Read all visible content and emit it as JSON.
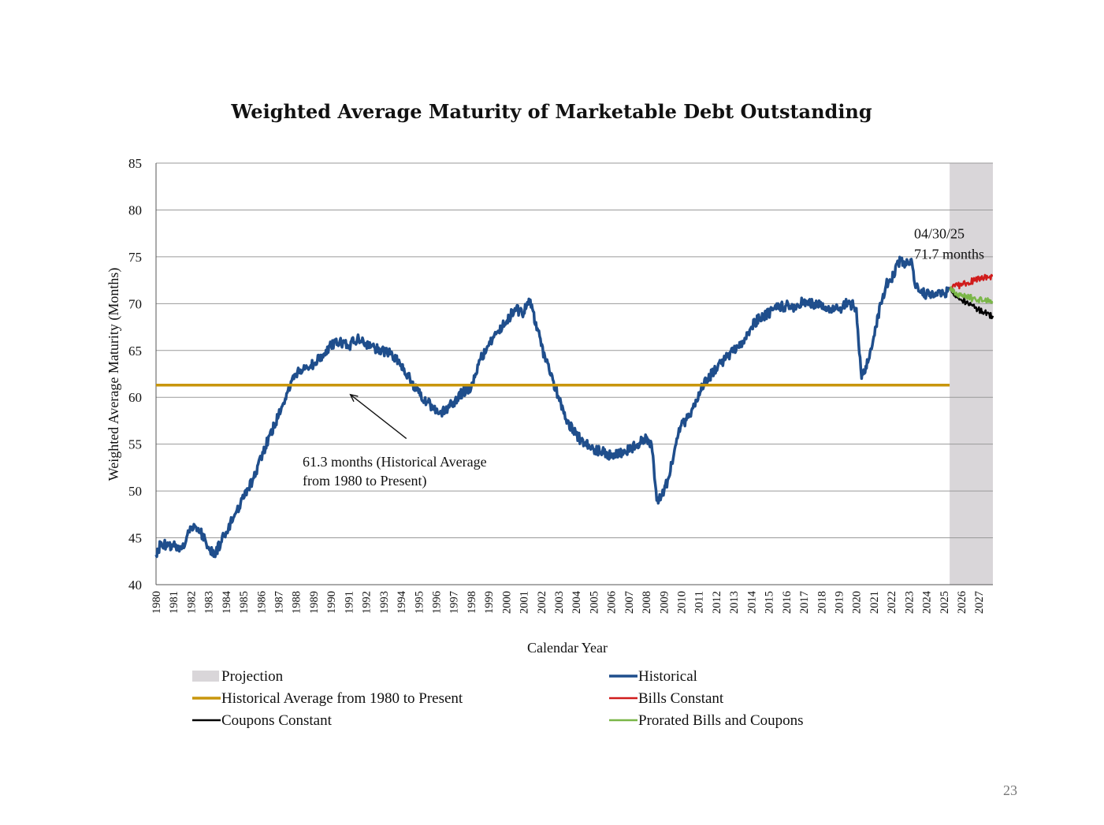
{
  "page_number": "23",
  "chart_data": {
    "type": "line",
    "title": "Weighted Average Maturity of Marketable Debt Outstanding",
    "xlabel": "Calendar Year",
    "ylabel": "Weighted Average Maturity (Months)",
    "ylim": [
      40,
      85
    ],
    "yticks": [
      40,
      45,
      50,
      55,
      60,
      65,
      70,
      75,
      80,
      85
    ],
    "xlim": [
      1980,
      2027.8
    ],
    "xticks": [
      "1980",
      "1981",
      "1982",
      "1983",
      "1984",
      "1985",
      "1986",
      "1987",
      "1988",
      "1989",
      "1990",
      "1991",
      "1992",
      "1993",
      "1994",
      "1995",
      "1996",
      "1997",
      "1998",
      "1999",
      "2000",
      "2001",
      "2002",
      "2003",
      "2004",
      "2005",
      "2006",
      "2007",
      "2008",
      "2009",
      "2010",
      "2011",
      "2012",
      "2013",
      "2014",
      "2015",
      "2016",
      "2017",
      "2018",
      "2019",
      "2020",
      "2021",
      "2022",
      "2023",
      "2024",
      "2025",
      "2026",
      "2027"
    ],
    "grid": "horizontal",
    "projection_start": 2025.33,
    "historical_average": 61.3,
    "series": [
      {
        "name": "Historical",
        "color": "#1f4e8c",
        "points": [
          [
            1980,
            43.2
          ],
          [
            1980.3,
            44.5
          ],
          [
            1980.7,
            44.2
          ],
          [
            1981,
            44.3
          ],
          [
            1981.5,
            44.0
          ],
          [
            1982,
            46.0
          ],
          [
            1982.5,
            45.7
          ],
          [
            1983,
            44.0
          ],
          [
            1983.3,
            43.0
          ],
          [
            1983.7,
            44.5
          ],
          [
            1984,
            45.6
          ],
          [
            1984.5,
            47.5
          ],
          [
            1985,
            49.2
          ],
          [
            1985.5,
            51.0
          ],
          [
            1986,
            53.5
          ],
          [
            1986.5,
            56.0
          ],
          [
            1987,
            58.0
          ],
          [
            1987.5,
            60.5
          ],
          [
            1988,
            62.5
          ],
          [
            1988.5,
            63.0
          ],
          [
            1989,
            63.5
          ],
          [
            1989.5,
            64.5
          ],
          [
            1990,
            65.5
          ],
          [
            1990.5,
            66.0
          ],
          [
            1991,
            65.5
          ],
          [
            1991.5,
            66.3
          ],
          [
            1992,
            65.8
          ],
          [
            1992.5,
            65.3
          ],
          [
            1993,
            65.0
          ],
          [
            1993.5,
            64.5
          ],
          [
            1994,
            63.5
          ],
          [
            1994.5,
            62.0
          ],
          [
            1995,
            60.5
          ],
          [
            1995.5,
            59.5
          ],
          [
            1996,
            58.5
          ],
          [
            1996.5,
            58.5
          ],
          [
            1997,
            59.5
          ],
          [
            1997.5,
            60.5
          ],
          [
            1998,
            61.0
          ],
          [
            1998.5,
            64.0
          ],
          [
            1999,
            65.5
          ],
          [
            1999.5,
            67.0
          ],
          [
            2000,
            68.0
          ],
          [
            2000.5,
            69.5
          ],
          [
            2001,
            69.0
          ],
          [
            2001.3,
            70.5
          ],
          [
            2001.7,
            68.0
          ],
          [
            2002,
            65.5
          ],
          [
            2002.5,
            62.5
          ],
          [
            2003,
            60.0
          ],
          [
            2003.5,
            57.5
          ],
          [
            2004,
            56.0
          ],
          [
            2004.5,
            55.0
          ],
          [
            2005,
            54.5
          ],
          [
            2005.5,
            54.2
          ],
          [
            2006,
            53.8
          ],
          [
            2006.5,
            54.0
          ],
          [
            2007,
            54.3
          ],
          [
            2007.5,
            55.0
          ],
          [
            2008,
            55.8
          ],
          [
            2008.3,
            55.0
          ],
          [
            2008.6,
            49.0
          ],
          [
            2008.9,
            49.5
          ],
          [
            2009.3,
            51.5
          ],
          [
            2009.7,
            55.0
          ],
          [
            2010,
            57.0
          ],
          [
            2010.5,
            58.0
          ],
          [
            2011,
            60.5
          ],
          [
            2011.5,
            62.0
          ],
          [
            2012,
            63.0
          ],
          [
            2012.5,
            64.0
          ],
          [
            2013,
            65.0
          ],
          [
            2013.5,
            66.0
          ],
          [
            2014,
            67.5
          ],
          [
            2014.5,
            68.5
          ],
          [
            2015,
            69.0
          ],
          [
            2015.5,
            69.5
          ],
          [
            2016,
            69.8
          ],
          [
            2016.5,
            69.5
          ],
          [
            2017,
            70.3
          ],
          [
            2017.5,
            70.0
          ],
          [
            2018,
            69.8
          ],
          [
            2018.5,
            69.5
          ],
          [
            2019,
            69.3
          ],
          [
            2019.5,
            70.2
          ],
          [
            2020,
            69.5
          ],
          [
            2020.3,
            62.0
          ],
          [
            2020.7,
            64.0
          ],
          [
            2021,
            66.5
          ],
          [
            2021.4,
            70.0
          ],
          [
            2021.7,
            72.0
          ],
          [
            2022,
            72.5
          ],
          [
            2022.4,
            74.5
          ],
          [
            2022.8,
            74.3
          ],
          [
            2023.1,
            74.7
          ],
          [
            2023.3,
            72.5
          ],
          [
            2023.6,
            71.3
          ],
          [
            2024,
            71.0
          ],
          [
            2024.5,
            70.8
          ],
          [
            2025,
            71.0
          ],
          [
            2025.33,
            71.7
          ]
        ]
      },
      {
        "name": "Bills Constant",
        "color": "#d01c1c",
        "points": [
          [
            2025.33,
            71.7
          ],
          [
            2025.8,
            71.9
          ],
          [
            2026.3,
            72.2
          ],
          [
            2026.8,
            72.5
          ],
          [
            2027.3,
            72.7
          ],
          [
            2027.8,
            73.0
          ]
        ]
      },
      {
        "name": "Coupons Constant",
        "color": "#000000",
        "points": [
          [
            2025.33,
            71.5
          ],
          [
            2025.8,
            70.6
          ],
          [
            2026.3,
            70.2
          ],
          [
            2026.8,
            69.6
          ],
          [
            2027.3,
            69.0
          ],
          [
            2027.8,
            68.7
          ]
        ]
      },
      {
        "name": "Prorated Bills and Coupons",
        "color": "#7ab648",
        "points": [
          [
            2025.33,
            71.6
          ],
          [
            2025.8,
            71.0
          ],
          [
            2026.3,
            70.7
          ],
          [
            2026.8,
            70.5
          ],
          [
            2027.3,
            70.3
          ],
          [
            2027.8,
            70.2
          ]
        ]
      },
      {
        "name": "Historical Average from 1980 to Present",
        "color": "#c8960c",
        "points": [
          [
            1980,
            61.3
          ],
          [
            2025.33,
            61.3
          ]
        ]
      }
    ],
    "annotations": [
      {
        "lines": [
          "04/30/25",
          "71.7 months"
        ],
        "x": 2023.3,
        "y": 75.3
      },
      {
        "lines": [
          "61.3 months (Historical Average",
          "from 1980 to Present)"
        ],
        "arrow_from": [
          1994.3,
          55.6
        ],
        "arrow_to": [
          1991.1,
          61.3
        ]
      }
    ],
    "legend": {
      "placement": "bottom",
      "items": [
        {
          "label": "Projection",
          "color": "#d9d6d9",
          "kind": "box"
        },
        {
          "label": "Historical",
          "color": "#1f4e8c",
          "kind": "line"
        },
        {
          "label": "Historical Average from 1980 to Present",
          "color": "#c8960c",
          "kind": "line"
        },
        {
          "label": "Bills Constant",
          "color": "#d01c1c",
          "kind": "line"
        },
        {
          "label": "Coupons Constant",
          "color": "#000000",
          "kind": "line"
        },
        {
          "label": "Prorated Bills and Coupons",
          "color": "#7ab648",
          "kind": "line"
        }
      ]
    }
  }
}
